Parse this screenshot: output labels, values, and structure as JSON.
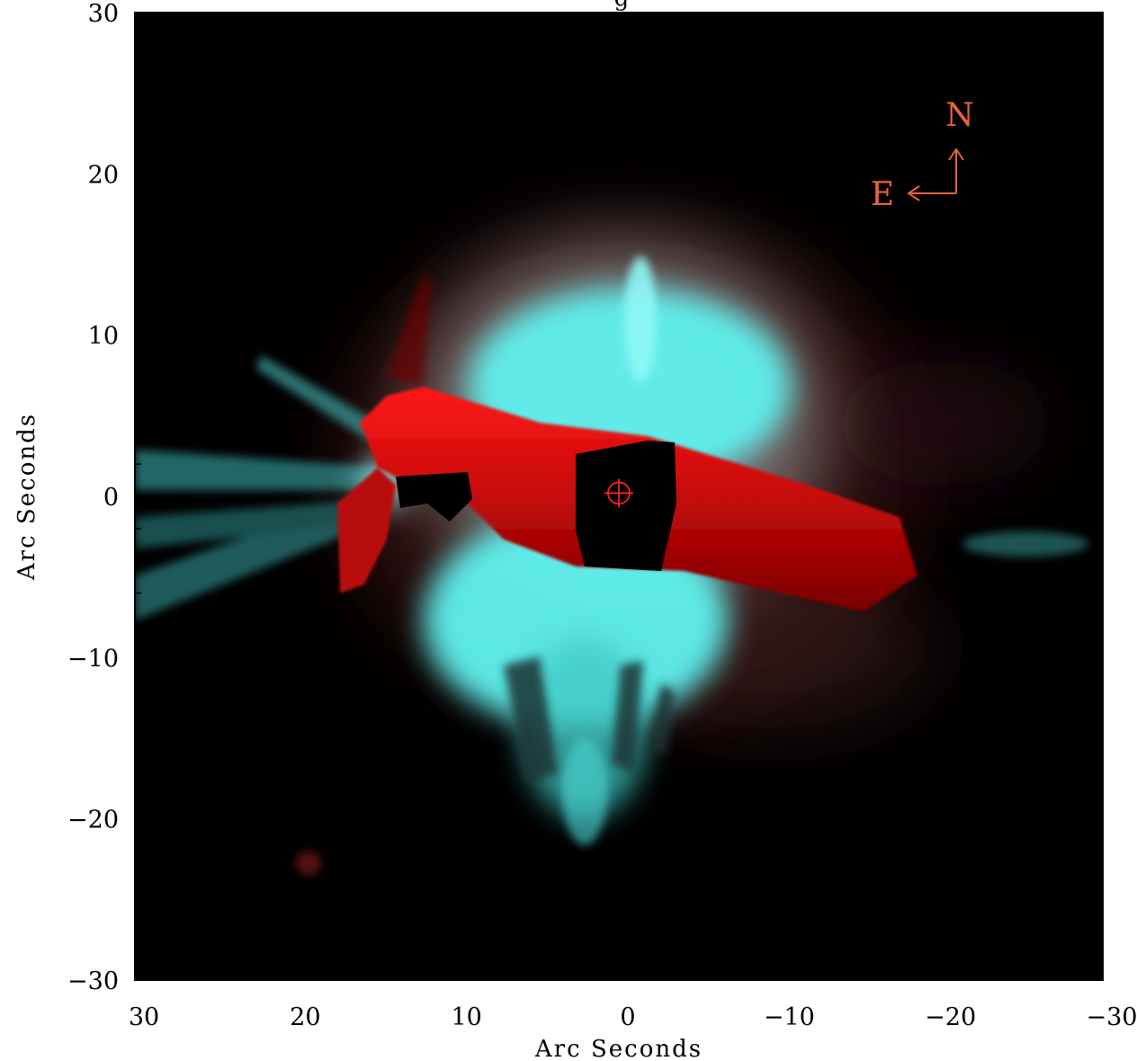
{
  "title_fragment": "g",
  "colors": {
    "background": "#000000",
    "cyan_emission": "#5ff3f0",
    "red_band": "#d80d0d",
    "compass": "#e8643c",
    "marker": "#ff2020"
  },
  "compass": {
    "north_label": "N",
    "east_label": "E"
  },
  "axes": {
    "x": {
      "label": "Arc Seconds",
      "range": [
        30,
        -30
      ],
      "ticks": [
        30,
        20,
        10,
        0,
        -10,
        -20,
        -30
      ],
      "tick_labels": [
        "30",
        "20",
        "10",
        "0",
        "−10",
        "−20",
        "−30"
      ]
    },
    "y": {
      "label": "Arc Seconds",
      "range": [
        -30,
        30
      ],
      "ticks": [
        30,
        20,
        10,
        0,
        -10,
        -20,
        -30
      ],
      "tick_labels": [
        "30",
        "20",
        "10",
        "0",
        "−10",
        "−20",
        "−30"
      ]
    }
  },
  "marker": {
    "name": "center-crosshair",
    "x": 0,
    "y": 0.2
  }
}
